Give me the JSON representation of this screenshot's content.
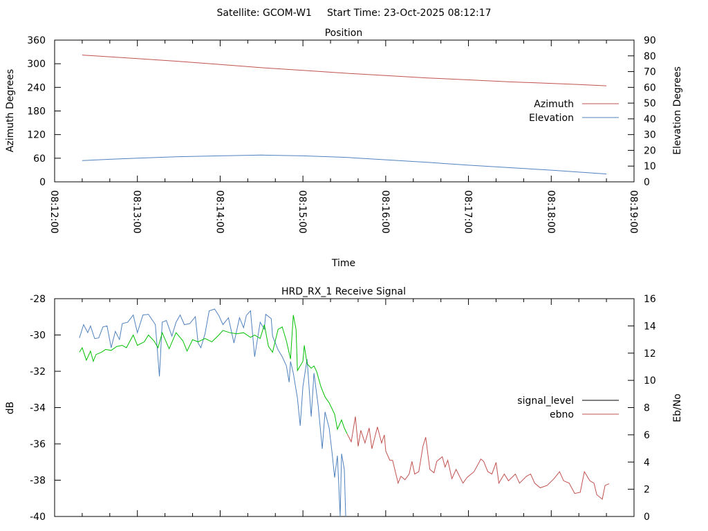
{
  "header": {
    "satellite": "Satellite: GCOM-W1",
    "start_time": "Start Time: 23-Oct-2025 08:12:17"
  },
  "chart_data": [
    {
      "type": "line",
      "title": "Position",
      "xlabel": "Time",
      "ylabel": "Azimuth Degrees",
      "y2label": "Elevation Degrees",
      "xlim_seconds_after_08_12_00": [
        0,
        420
      ],
      "xticks": [
        "08:12:00",
        "08:13:00",
        "08:14:00",
        "08:15:00",
        "08:16:00",
        "08:17:00",
        "08:18:00",
        "08:19:00"
      ],
      "ylim": [
        0,
        360
      ],
      "yticks": [
        "0",
        "60",
        "120",
        "180",
        "240",
        "300",
        "360"
      ],
      "y2lim": [
        0,
        90
      ],
      "y2ticks": [
        "0",
        "10",
        "20",
        "30",
        "40",
        "50",
        "60",
        "70",
        "80",
        "90"
      ],
      "legend_position": "right",
      "series": [
        {
          "name": "Azimuth",
          "axis": "y",
          "color": "#c0504d",
          "t": [
            20,
            60,
            90,
            120,
            150,
            180,
            210,
            240,
            270,
            300,
            330,
            360,
            380,
            400
          ],
          "values": [
            322,
            313,
            306,
            298,
            290,
            283,
            276,
            270,
            264,
            259,
            254,
            250,
            247,
            244
          ]
        },
        {
          "name": "Elevation",
          "axis": "y2",
          "color": "#4f81bd",
          "t": [
            20,
            40,
            60,
            90,
            120,
            150,
            180,
            210,
            240,
            270,
            300,
            330,
            360,
            380,
            400
          ],
          "values": [
            13.5,
            14.3,
            15,
            16,
            16.5,
            17,
            16.5,
            15.6,
            14,
            12.4,
            10.6,
            9,
            7.4,
            6.2,
            5
          ]
        }
      ]
    },
    {
      "type": "line",
      "title": "HRD_RX_1 Receive Signal",
      "ylabel": "dB",
      "y2label": "Eb/No",
      "xlim_seconds_after_08_12_00": [
        0,
        420
      ],
      "ylim": [
        -40,
        -28
      ],
      "yticks": [
        "-40",
        "-38",
        "-36",
        "-34",
        "-32",
        "-30",
        "-28"
      ],
      "y2lim": [
        0,
        16
      ],
      "y2ticks": [
        "0",
        "2",
        "4",
        "6",
        "8",
        "10",
        "12",
        "14",
        "16"
      ],
      "legend": [
        {
          "name": "signal_level",
          "color": "#000000"
        },
        {
          "name": "ebno",
          "color": "#c0504d"
        }
      ],
      "series": [
        {
          "name": "signal_level",
          "axis": "y",
          "color": "#4f81bd",
          "t": [
            18,
            21,
            24,
            26,
            29,
            32,
            35,
            38,
            41,
            44,
            47,
            49,
            53,
            57,
            60,
            64,
            68,
            73,
            76,
            78,
            81,
            85,
            88,
            91,
            94,
            98,
            102,
            104,
            106,
            109,
            112,
            116,
            119,
            122,
            126,
            130,
            134,
            137,
            139,
            142,
            145,
            149,
            152,
            153,
            157,
            158,
            162,
            165,
            168,
            170,
            171,
            173,
            176,
            178,
            180,
            183,
            186,
            188,
            191,
            194,
            196,
            199,
            201,
            203,
            205,
            207,
            208,
            210,
            211
          ],
          "values": [
            -30.16,
            -29.43,
            -29.87,
            -29.5,
            -30.2,
            -30.16,
            -29.56,
            -29.5,
            -30.7,
            -29.8,
            -30.25,
            -29.37,
            -29.3,
            -28.9,
            -29.87,
            -28.9,
            -28.86,
            -29.43,
            -32.28,
            -29.3,
            -29.2,
            -30.06,
            -29.3,
            -28.9,
            -29.43,
            -29.37,
            -28.99,
            -30.44,
            -30.7,
            -29.94,
            -28.67,
            -28.57,
            -28.92,
            -29.43,
            -29.05,
            -30.44,
            -29.05,
            -29.6,
            -28.92,
            -28.67,
            -31.2,
            -29.3,
            -29.68,
            -28.86,
            -29.1,
            -30.06,
            -30.82,
            -31.2,
            -31.7,
            -32.6,
            -31.46,
            -32.1,
            -33.48,
            -35.0,
            -32.85,
            -31.33,
            -34.5,
            -32.1,
            -33.86,
            -36.27,
            -34.24,
            -35.13,
            -36.4,
            -37.85,
            -36.65,
            -40,
            -36.55,
            -37.4,
            -40
          ]
        },
        {
          "name": "ebno",
          "axis": "y2",
          "color": "#00c000",
          "t": [
            18,
            20,
            23,
            26,
            28,
            30,
            34,
            37,
            41,
            45,
            49,
            52,
            57,
            60,
            65,
            68,
            72,
            75,
            78,
            83,
            88,
            93,
            96,
            100,
            104,
            109,
            114,
            119,
            122,
            127,
            132,
            137,
            142,
            145,
            149,
            152,
            155,
            158,
            162,
            165,
            168,
            171,
            173,
            175,
            176,
            180,
            181,
            183,
            186,
            188,
            190,
            193,
            196,
            199,
            203,
            205,
            208,
            210,
            212
          ],
          "values": [
            12.07,
            12.4,
            11.48,
            12.15,
            11.4,
            11.9,
            12.07,
            12.27,
            12.2,
            12.49,
            12.57,
            12.4,
            13.33,
            12.57,
            12.83,
            13.33,
            12.9,
            12.4,
            13.5,
            12.32,
            13.5,
            12.9,
            12.15,
            12.99,
            12.83,
            13.08,
            12.83,
            13.33,
            13.67,
            13.5,
            13.42,
            13.5,
            13.16,
            13.33,
            13.08,
            14.09,
            12.49,
            12.07,
            13.75,
            13.92,
            12.9,
            11.56,
            14.8,
            13.75,
            10.72,
            11.4,
            12.57,
            11.22,
            10.89,
            11.06,
            10.63,
            9.54,
            8.78,
            8.35,
            7.51,
            6.41,
            7.09,
            6.5,
            6.08
          ]
        },
        {
          "name": "ebno",
          "axis": "y2",
          "color": "#c0504d",
          "t": [
            212,
            215,
            218,
            220,
            222,
            225,
            228,
            230,
            234,
            237,
            239,
            240,
            243,
            245,
            249,
            251,
            254,
            257,
            259,
            261,
            264,
            267,
            269,
            272,
            275,
            277,
            281,
            283,
            285,
            288,
            291,
            296,
            299,
            304,
            309,
            311,
            314,
            317,
            320,
            322,
            326,
            329,
            334,
            337,
            342,
            345,
            348,
            352,
            357,
            362,
            366,
            369,
            373,
            377,
            381,
            384,
            388,
            391,
            393,
            397,
            399,
            402
          ],
          "values": [
            6.08,
            5.49,
            7.34,
            5.15,
            6.33,
            5.4,
            6.5,
            4.98,
            6.58,
            5.4,
            5.99,
            4.81,
            4.13,
            4.13,
            2.45,
            2.95,
            2.7,
            3.12,
            4.05,
            3.12,
            3.29,
            5.15,
            5.82,
            3.46,
            3.21,
            4.05,
            4.39,
            3.63,
            4.13,
            2.78,
            3.46,
            2.45,
            2.87,
            3.29,
            4.22,
            4.05,
            3.29,
            3.12,
            3.97,
            2.45,
            3.12,
            2.62,
            3.12,
            2.45,
            2.95,
            3.12,
            2.45,
            2.11,
            2.28,
            2.78,
            3.29,
            2.62,
            2.45,
            1.69,
            1.78,
            3.29,
            2.62,
            2.45,
            1.6,
            1.27,
            2.28,
            2.41
          ]
        }
      ]
    }
  ]
}
